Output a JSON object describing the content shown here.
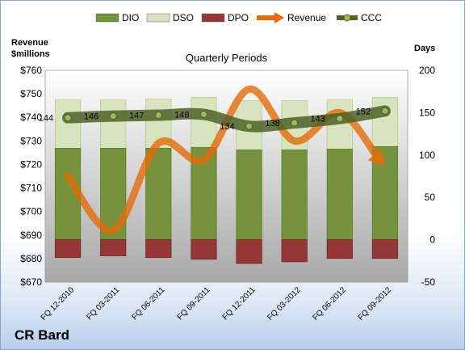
{
  "chart_data": {
    "type": "bar",
    "title": "Quarterly Periods",
    "company": "CR Bard",
    "left_axis_title": [
      "Revenue",
      "$millions"
    ],
    "right_axis_title": "Days",
    "left_axis": {
      "ylim": [
        670,
        760
      ],
      "ticks": [
        "$670",
        "$680",
        "$690",
        "$700",
        "$710",
        "$720",
        "$730",
        "$740",
        "$750",
        "$760"
      ]
    },
    "right_axis": {
      "ylim": [
        -50,
        200
      ],
      "ticks": [
        "-50",
        "0",
        "50",
        "100",
        "150",
        "200"
      ]
    },
    "categories": [
      "FQ 12-2010",
      "FQ 03-2011",
      "FQ 06-2011",
      "FQ 09-2011",
      "FQ 12-2011",
      "FQ 03-2012",
      "FQ 06-2012",
      "FQ 09-2012"
    ],
    "legend_position": "top",
    "grid": false,
    "series": [
      {
        "name": "DIO",
        "type": "stacked-bar",
        "axis": "right",
        "color": "#76923c",
        "values": [
          108,
          108,
          108,
          109,
          106,
          106,
          107,
          110
        ]
      },
      {
        "name": "DSO",
        "type": "stacked-bar",
        "axis": "right",
        "color": "#d7e4bd",
        "values": [
          57,
          57,
          58,
          59,
          58,
          58,
          58,
          58
        ]
      },
      {
        "name": "DPO",
        "type": "stacked-bar",
        "axis": "right",
        "color": "#953735",
        "values": [
          -21,
          -19,
          -21,
          -23,
          -28,
          -26,
          -22,
          -22
        ]
      },
      {
        "name": "Revenue",
        "type": "line",
        "axis": "left",
        "color": "#e46c0a",
        "values": [
          715,
          692,
          729,
          722,
          752,
          730,
          742,
          719
        ]
      },
      {
        "name": "CCC",
        "type": "line",
        "axis": "right",
        "color": "#4f6228",
        "values": [
          144,
          146,
          147,
          148,
          134,
          138,
          143,
          152
        ],
        "labels": [
          "144",
          "146",
          "147",
          "148",
          "134",
          "138",
          "143",
          "152"
        ]
      }
    ]
  }
}
